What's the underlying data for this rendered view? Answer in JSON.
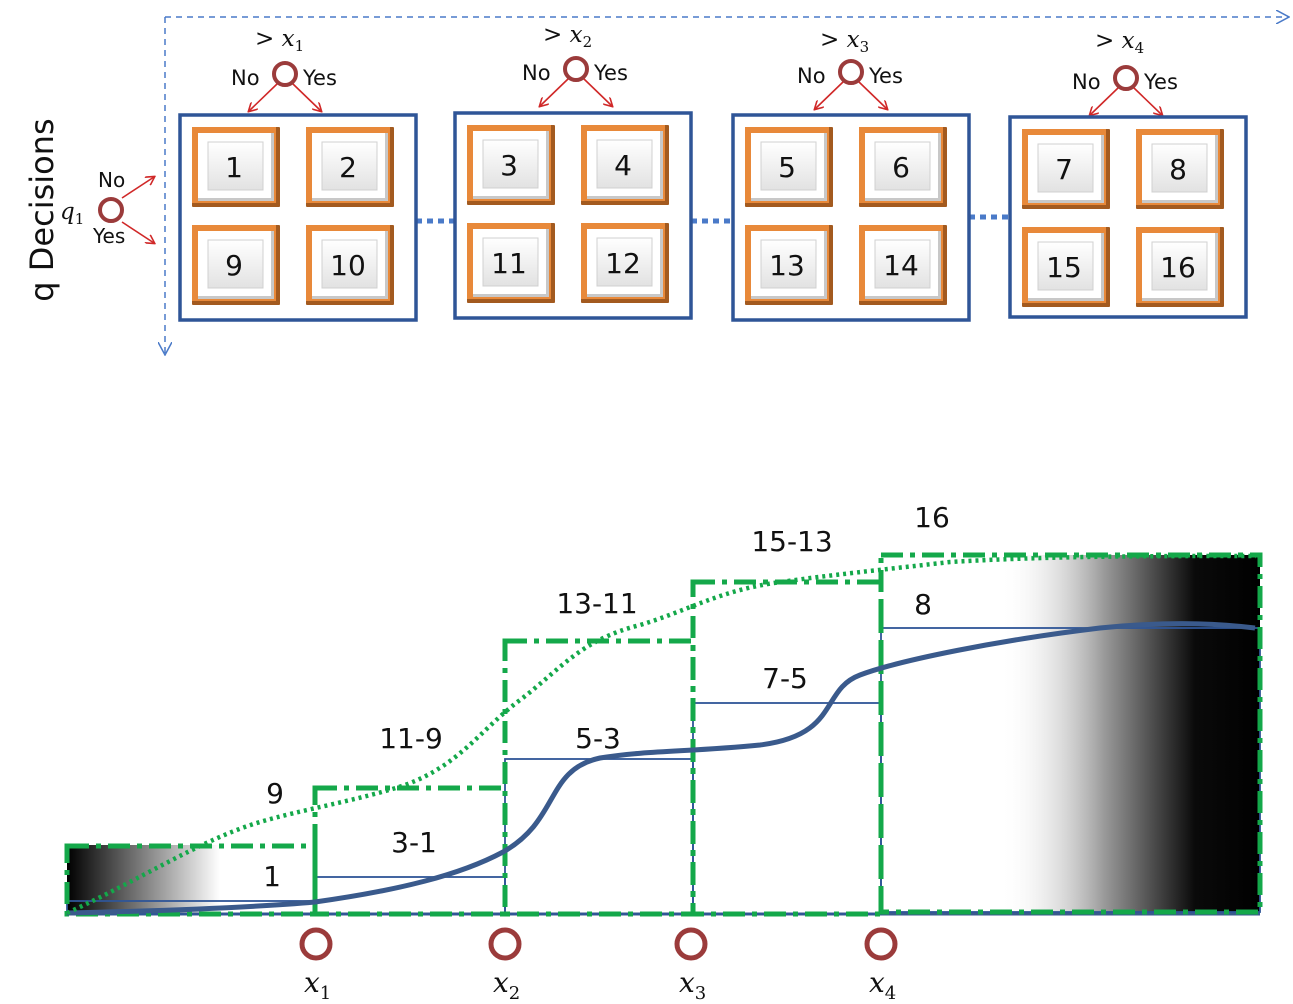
{
  "y_axis_title": "q Decisions",
  "q_node": {
    "label": "q",
    "sub": "1",
    "no": "No",
    "yes": "Yes"
  },
  "groups": [
    {
      "threshold": "> x",
      "sub": "1",
      "no": "No",
      "yes": "Yes",
      "cells": [
        "1",
        "2",
        "9",
        "10"
      ]
    },
    {
      "threshold": "> x",
      "sub": "2",
      "no": "No",
      "yes": "Yes",
      "cells": [
        "3",
        "4",
        "11",
        "12"
      ]
    },
    {
      "threshold": "> x",
      "sub": "3",
      "no": "No",
      "yes": "Yes",
      "cells": [
        "5",
        "6",
        "13",
        "14"
      ]
    },
    {
      "threshold": "> x",
      "sub": "4",
      "no": "No",
      "yes": "Yes",
      "cells": [
        "7",
        "8",
        "15",
        "16"
      ]
    }
  ],
  "step_labels": {
    "solid": [
      "1",
      "3-1",
      "5-3",
      "7-5",
      "8"
    ],
    "dotted": [
      "9",
      "11-9",
      "13-11",
      "15-13",
      "16"
    ]
  },
  "thresholds": [
    {
      "label": "x",
      "sub": "1"
    },
    {
      "label": "x",
      "sub": "2"
    },
    {
      "label": "x",
      "sub": "3"
    },
    {
      "label": "x",
      "sub": "4"
    }
  ],
  "colors": {
    "box_border": "#2f5597",
    "tile_orange": "#e8893a",
    "curve_blue": "#3a5a8c",
    "green": "#14a84a",
    "node_red": "#9b3b3b",
    "arrow_red": "#d02828",
    "dashed_arrow": "#4a7ac8"
  }
}
